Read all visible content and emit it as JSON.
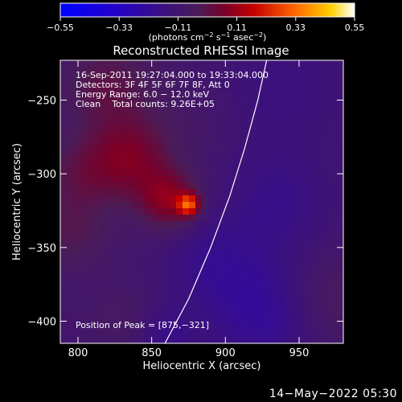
{
  "chart_data": {
    "type": "heatmap",
    "title": "Reconstructed RHESSI Image",
    "xlabel": "Heliocentric X (arcsec)",
    "ylabel": "Heliocentric Y (arcsec)",
    "xlim": [
      788,
      980
    ],
    "ylim": [
      -415,
      -223
    ],
    "x_ticks": [
      800,
      850,
      900,
      950
    ],
    "y_ticks": [
      -250,
      -300,
      -350,
      -400
    ],
    "x_tick_labels": [
      "800",
      "850",
      "900",
      "950"
    ],
    "y_tick_labels": [
      "−250",
      "−300",
      "−350",
      "−400"
    ],
    "colorbar": {
      "range": [
        -0.55,
        0.55
      ],
      "ticks": [
        -0.55,
        -0.33,
        -0.11,
        0.11,
        0.33,
        0.55
      ],
      "tick_labels": [
        "−0.55",
        "−0.33",
        "−0.11",
        "0.11",
        "0.33",
        "0.55"
      ],
      "unit_parts": [
        "(photons cm",
        "−2",
        " s",
        "−1",
        " asec",
        "−2",
        ")"
      ]
    },
    "info_lines": [
      "16-Sep-2011 19:27:04.000 to 19:33:04.000",
      "Detectors: 3F 4F 5F 6F 7F 8F, Att 0",
      "Energy Range: 6.0 − 12.0 keV",
      "Clean    Total counts: 9.26E+05"
    ],
    "peak_label": "Position of Peak = [875,−321]",
    "peak": {
      "x": 875,
      "y": -321,
      "value": 0.55
    },
    "limb_curve": [
      [
        859,
        -415
      ],
      [
        875,
        -385
      ],
      [
        890,
        -350
      ],
      [
        903,
        -315
      ],
      [
        913,
        -283
      ],
      [
        922,
        -250
      ],
      [
        928,
        -223
      ]
    ],
    "features": [
      {
        "x": 875,
        "y": -321,
        "sigma": 5,
        "amp": 0.34
      },
      {
        "x": 862,
        "y": -318,
        "sigma": 14,
        "amp": 0.18
      },
      {
        "x": 835,
        "y": -290,
        "sigma": 20,
        "amp": 0.16
      },
      {
        "x": 820,
        "y": -240,
        "sigma": 22,
        "amp": 0.1
      },
      {
        "x": 800,
        "y": -300,
        "sigma": 18,
        "amp": 0.08
      },
      {
        "x": 795,
        "y": -340,
        "sigma": 18,
        "amp": 0.08
      },
      {
        "x": 830,
        "y": -400,
        "sigma": 16,
        "amp": 0.04
      },
      {
        "x": 970,
        "y": -385,
        "sigma": 22,
        "amp": 0.06
      },
      {
        "x": 875,
        "y": -260,
        "sigma": 22,
        "amp": 0.02
      },
      {
        "x": 925,
        "y": -395,
        "sigma": 26,
        "amp": -0.12
      },
      {
        "x": 935,
        "y": -320,
        "sigma": 26,
        "amp": -0.08
      },
      {
        "x": 890,
        "y": -360,
        "sigma": 22,
        "amp": -0.08
      },
      {
        "x": 940,
        "y": -240,
        "sigma": 30,
        "amp": -0.06
      },
      {
        "x": 860,
        "y": -410,
        "sigma": 14,
        "amp": -0.08
      }
    ],
    "background": -0.1
  },
  "footer": {
    "timestamp": "14−May−2022 05:30"
  }
}
